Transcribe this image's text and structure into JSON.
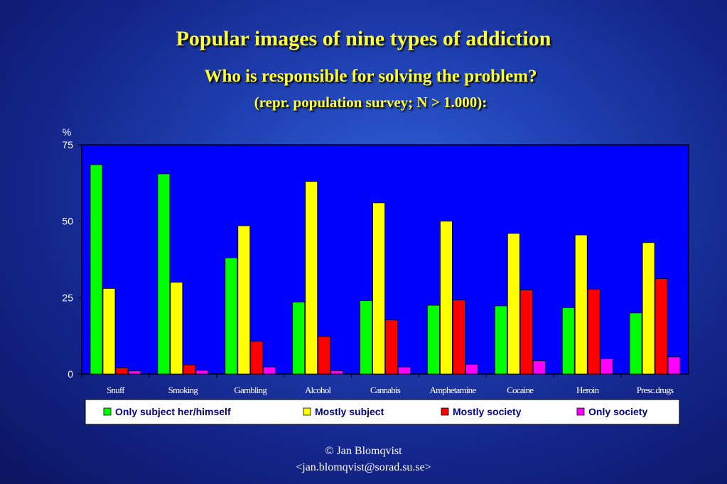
{
  "title": "Popular images of nine types of addiction",
  "subtitle": "Who is responsible for solving the problem?",
  "subtitle2": "(repr. population survey; N > 1.000):",
  "footer": {
    "line1": "© Jan Blomqvist",
    "line2": "<jan.blomqvist@sorad.su.se>"
  },
  "colors": {
    "plot_bg": "#0000ff",
    "axis_text": "#ffffff"
  },
  "chart_data": {
    "type": "bar",
    "title": "Popular images of nine types of addiction",
    "ylabel": "%",
    "ylim": [
      0,
      75
    ],
    "yticks": [
      0,
      25,
      50,
      75
    ],
    "grid": false,
    "legend_position": "bottom",
    "categories": [
      "Snuff",
      "Smoking",
      "Gambling",
      "Alcohol",
      "Cannabis",
      "Amphetamine",
      "Cocaine",
      "Heroin",
      "Presc.drugs"
    ],
    "series": [
      {
        "name": "Only subject her/himself",
        "color": "#00ff00",
        "values": [
          68.5,
          65.5,
          38,
          23.5,
          24,
          22.5,
          22.3,
          21.7,
          20
        ]
      },
      {
        "name": "Mostly subject",
        "color": "#ffff00",
        "values": [
          28,
          30,
          48.5,
          63,
          56,
          50,
          46,
          45.5,
          43
        ]
      },
      {
        "name": "Mostly society",
        "color": "#ff0000",
        "values": [
          2,
          3,
          10.7,
          12.3,
          17.7,
          24.2,
          27.5,
          27.7,
          31.2
        ]
      },
      {
        "name": "Only society",
        "color": "#ff00ff",
        "values": [
          1,
          1.2,
          2.3,
          1.1,
          2.3,
          3.2,
          4.3,
          5,
          5.6
        ]
      }
    ]
  }
}
